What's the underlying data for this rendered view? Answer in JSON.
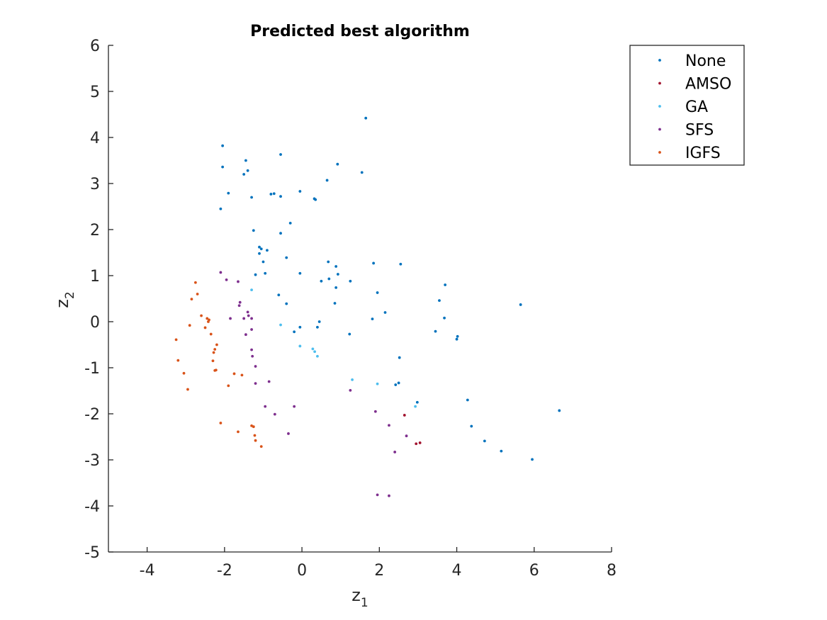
{
  "chart_data": {
    "type": "scatter",
    "title": "Predicted best algorithm",
    "xlabel": {
      "base": "z",
      "sub": "1"
    },
    "ylabel": {
      "base": "z",
      "sub": "2"
    },
    "xlim": [
      -5,
      8
    ],
    "ylim": [
      -5,
      6
    ],
    "xticks": [
      -4,
      -2,
      0,
      2,
      4,
      6,
      8
    ],
    "yticks": [
      -5,
      -4,
      -3,
      -2,
      -1,
      0,
      1,
      2,
      3,
      4,
      5,
      6
    ],
    "grid": false,
    "legend_position": "top-right",
    "series": [
      {
        "name": "None",
        "color": "#0072BD",
        "points": [
          [
            1.65,
            4.42
          ],
          [
            -2.05,
            3.82
          ],
          [
            -0.55,
            3.63
          ],
          [
            -1.45,
            3.5
          ],
          [
            -2.05,
            3.36
          ],
          [
            0.92,
            3.42
          ],
          [
            -1.4,
            3.28
          ],
          [
            -1.5,
            3.2
          ],
          [
            1.55,
            3.24
          ],
          [
            0.65,
            3.07
          ],
          [
            -1.9,
            2.79
          ],
          [
            -0.05,
            2.83
          ],
          [
            -0.8,
            2.77
          ],
          [
            -0.72,
            2.78
          ],
          [
            -0.55,
            2.72
          ],
          [
            -1.3,
            2.7
          ],
          [
            0.32,
            2.67
          ],
          [
            0.35,
            2.65
          ],
          [
            -2.1,
            2.45
          ],
          [
            -0.3,
            2.14
          ],
          [
            -1.25,
            1.98
          ],
          [
            -0.55,
            1.92
          ],
          [
            -1.1,
            1.62
          ],
          [
            -1.05,
            1.58
          ],
          [
            -0.9,
            1.55
          ],
          [
            -1.1,
            1.48
          ],
          [
            -0.4,
            1.39
          ],
          [
            -1.0,
            1.3
          ],
          [
            0.68,
            1.3
          ],
          [
            0.88,
            1.2
          ],
          [
            1.85,
            1.27
          ],
          [
            2.55,
            1.25
          ],
          [
            -0.95,
            1.05
          ],
          [
            -0.05,
            1.05
          ],
          [
            -1.2,
            1.02
          ],
          [
            0.93,
            1.03
          ],
          [
            0.7,
            0.93
          ],
          [
            0.5,
            0.88
          ],
          [
            1.25,
            0.88
          ],
          [
            0.88,
            0.74
          ],
          [
            3.7,
            0.8
          ],
          [
            1.95,
            0.63
          ],
          [
            -0.6,
            0.58
          ],
          [
            3.55,
            0.46
          ],
          [
            -0.4,
            0.39
          ],
          [
            0.85,
            0.4
          ],
          [
            5.65,
            0.37
          ],
          [
            2.15,
            0.2
          ],
          [
            1.82,
            0.06
          ],
          [
            3.68,
            0.08
          ],
          [
            0.45,
            0.0
          ],
          [
            0.4,
            -0.12
          ],
          [
            -0.05,
            -0.12
          ],
          [
            -0.2,
            -0.22
          ],
          [
            3.45,
            -0.21
          ],
          [
            1.23,
            -0.27
          ],
          [
            4.02,
            -0.32
          ],
          [
            4.0,
            -0.38
          ],
          [
            2.52,
            -0.78
          ],
          [
            2.5,
            -1.33
          ],
          [
            2.42,
            -1.37
          ],
          [
            2.98,
            -1.75
          ],
          [
            4.28,
            -1.7
          ],
          [
            6.65,
            -1.93
          ],
          [
            4.38,
            -2.27
          ],
          [
            4.72,
            -2.59
          ],
          [
            5.15,
            -2.81
          ],
          [
            5.95,
            -2.99
          ]
        ]
      },
      {
        "name": "AMSO",
        "color": "#A2142F",
        "points": [
          [
            2.65,
            -2.03
          ],
          [
            2.95,
            -2.65
          ],
          [
            3.05,
            -2.63
          ]
        ]
      },
      {
        "name": "GA",
        "color": "#4DBEEE",
        "points": [
          [
            -1.3,
            0.69
          ],
          [
            -0.55,
            -0.07
          ],
          [
            -0.05,
            -0.53
          ],
          [
            0.28,
            -0.59
          ],
          [
            0.33,
            -0.65
          ],
          [
            0.4,
            -0.75
          ],
          [
            1.3,
            -1.26
          ],
          [
            1.95,
            -1.35
          ],
          [
            2.93,
            -1.84
          ]
        ]
      },
      {
        "name": "SFS",
        "color": "#7E2F8E",
        "points": [
          [
            -2.1,
            1.07
          ],
          [
            -1.95,
            0.91
          ],
          [
            -1.65,
            0.87
          ],
          [
            -1.6,
            0.42
          ],
          [
            -1.62,
            0.35
          ],
          [
            -1.4,
            0.21
          ],
          [
            -1.38,
            0.13
          ],
          [
            -1.85,
            0.07
          ],
          [
            -1.5,
            0.07
          ],
          [
            -1.3,
            0.07
          ],
          [
            -1.45,
            -0.28
          ],
          [
            -1.3,
            -0.17
          ],
          [
            -1.3,
            -0.61
          ],
          [
            -1.28,
            -0.75
          ],
          [
            -1.2,
            -0.97
          ],
          [
            -0.85,
            -1.3
          ],
          [
            -1.2,
            -1.34
          ],
          [
            1.25,
            -1.49
          ],
          [
            -0.95,
            -1.84
          ],
          [
            -0.2,
            -1.84
          ],
          [
            1.9,
            -1.95
          ],
          [
            -0.7,
            -2.01
          ],
          [
            2.25,
            -2.25
          ],
          [
            -0.35,
            -2.43
          ],
          [
            2.7,
            -2.48
          ],
          [
            2.4,
            -2.83
          ],
          [
            1.95,
            -3.76
          ],
          [
            2.25,
            -3.78
          ]
        ]
      },
      {
        "name": "IGFS",
        "color": "#D95319",
        "points": [
          [
            -2.75,
            0.85
          ],
          [
            -2.7,
            0.6
          ],
          [
            -2.85,
            0.49
          ],
          [
            -2.6,
            0.13
          ],
          [
            -2.45,
            0.07
          ],
          [
            -2.4,
            0.04
          ],
          [
            -2.42,
            0.0
          ],
          [
            -2.5,
            -0.13
          ],
          [
            -2.9,
            -0.08
          ],
          [
            -2.35,
            -0.27
          ],
          [
            -2.2,
            -0.5
          ],
          [
            -2.25,
            -0.6
          ],
          [
            -2.28,
            -0.67
          ],
          [
            -3.25,
            -0.39
          ],
          [
            -2.3,
            -0.85
          ],
          [
            -3.2,
            -0.84
          ],
          [
            -2.22,
            -1.05
          ],
          [
            -2.25,
            -1.06
          ],
          [
            -3.05,
            -1.12
          ],
          [
            -1.75,
            -1.13
          ],
          [
            -1.55,
            -1.16
          ],
          [
            -1.9,
            -1.39
          ],
          [
            -2.95,
            -1.47
          ],
          [
            -2.1,
            -2.2
          ],
          [
            -1.3,
            -2.26
          ],
          [
            -1.25,
            -2.28
          ],
          [
            -1.65,
            -2.39
          ],
          [
            -1.22,
            -2.47
          ],
          [
            -1.2,
            -2.58
          ],
          [
            -1.05,
            -2.71
          ]
        ]
      }
    ]
  }
}
